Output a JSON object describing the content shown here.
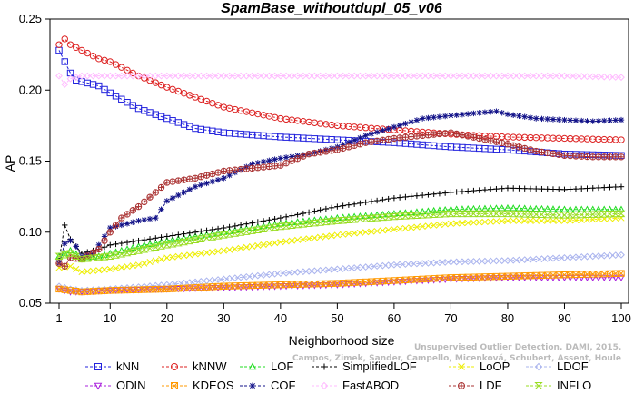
{
  "chart_data": {
    "type": "line",
    "title": "SpamBase_withoutdupl_05_v06",
    "xlabel": "Neighborhood size",
    "ylabel": "AP",
    "xlim": [
      1,
      100
    ],
    "ylim": [
      0.05,
      0.25
    ],
    "xticks": [
      1,
      10,
      20,
      30,
      40,
      50,
      60,
      70,
      80,
      90,
      100
    ],
    "yticks": [
      0.05,
      0.1,
      0.15,
      0.2,
      0.25
    ],
    "ytick_labels": [
      "0.05",
      "0.10",
      "0.15",
      "0.20",
      "0.25"
    ],
    "credit": "Campos, Zimek, Sander, Campello, Micenková, Schubert, Assent, Houle",
    "credit_line1": "Unsupervised Outlier Detection. DAMI, 2015.",
    "legend_placement": "bottom",
    "series": [
      {
        "name": "kNN",
        "color": "#2222dd",
        "marker": "square",
        "points": [
          [
            1,
            0.228
          ],
          [
            2,
            0.22
          ],
          [
            3,
            0.212
          ],
          [
            4,
            0.207
          ],
          [
            5,
            0.206
          ],
          [
            8,
            0.203
          ],
          [
            10,
            0.198
          ],
          [
            15,
            0.187
          ],
          [
            20,
            0.18
          ],
          [
            25,
            0.173
          ],
          [
            30,
            0.17
          ],
          [
            40,
            0.167
          ],
          [
            50,
            0.165
          ],
          [
            60,
            0.163
          ],
          [
            70,
            0.16
          ],
          [
            80,
            0.158
          ],
          [
            90,
            0.155
          ],
          [
            100,
            0.154
          ]
        ]
      },
      {
        "name": "kNNW",
        "color": "#dd2222",
        "marker": "circle",
        "points": [
          [
            1,
            0.232
          ],
          [
            2,
            0.236
          ],
          [
            3,
            0.232
          ],
          [
            5,
            0.228
          ],
          [
            8,
            0.222
          ],
          [
            10,
            0.22
          ],
          [
            15,
            0.21
          ],
          [
            20,
            0.202
          ],
          [
            25,
            0.195
          ],
          [
            30,
            0.188
          ],
          [
            40,
            0.18
          ],
          [
            50,
            0.175
          ],
          [
            60,
            0.172
          ],
          [
            70,
            0.169
          ],
          [
            80,
            0.167
          ],
          [
            90,
            0.166
          ],
          [
            100,
            0.165
          ]
        ]
      },
      {
        "name": "LOF",
        "color": "#22dd22",
        "marker": "triangle",
        "points": [
          [
            1,
            0.083
          ],
          [
            3,
            0.087
          ],
          [
            5,
            0.082
          ],
          [
            8,
            0.083
          ],
          [
            10,
            0.085
          ],
          [
            15,
            0.09
          ],
          [
            20,
            0.094
          ],
          [
            30,
            0.1
          ],
          [
            40,
            0.106
          ],
          [
            50,
            0.11
          ],
          [
            60,
            0.113
          ],
          [
            70,
            0.116
          ],
          [
            80,
            0.117
          ],
          [
            90,
            0.116
          ],
          [
            100,
            0.116
          ]
        ]
      },
      {
        "name": "SimplifiedLOF",
        "color": "#000000",
        "marker": "plus",
        "points": [
          [
            1,
            0.08
          ],
          [
            2,
            0.105
          ],
          [
            3,
            0.095
          ],
          [
            4,
            0.09
          ],
          [
            5,
            0.085
          ],
          [
            8,
            0.088
          ],
          [
            10,
            0.091
          ],
          [
            15,
            0.094
          ],
          [
            20,
            0.097
          ],
          [
            30,
            0.103
          ],
          [
            40,
            0.11
          ],
          [
            50,
            0.118
          ],
          [
            60,
            0.124
          ],
          [
            70,
            0.128
          ],
          [
            80,
            0.131
          ],
          [
            90,
            0.13
          ],
          [
            100,
            0.132
          ]
        ]
      },
      {
        "name": "LoOP",
        "color": "#eeee00",
        "marker": "cross",
        "points": [
          [
            1,
            0.075
          ],
          [
            3,
            0.076
          ],
          [
            5,
            0.072
          ],
          [
            10,
            0.074
          ],
          [
            15,
            0.077
          ],
          [
            20,
            0.082
          ],
          [
            30,
            0.087
          ],
          [
            40,
            0.093
          ],
          [
            50,
            0.098
          ],
          [
            60,
            0.102
          ],
          [
            70,
            0.106
          ],
          [
            80,
            0.108
          ],
          [
            90,
            0.108
          ],
          [
            100,
            0.11
          ]
        ]
      },
      {
        "name": "LDOF",
        "color": "#aab4ee",
        "marker": "diamond",
        "points": [
          [
            1,
            0.062
          ],
          [
            3,
            0.06
          ],
          [
            5,
            0.059
          ],
          [
            10,
            0.06
          ],
          [
            20,
            0.063
          ],
          [
            30,
            0.067
          ],
          [
            40,
            0.071
          ],
          [
            50,
            0.074
          ],
          [
            60,
            0.077
          ],
          [
            70,
            0.079
          ],
          [
            80,
            0.08
          ],
          [
            90,
            0.082
          ],
          [
            100,
            0.084
          ]
        ]
      },
      {
        "name": "ODIN",
        "color": "#aa22dd",
        "marker": "triangle-down",
        "points": [
          [
            1,
            0.06
          ],
          [
            3,
            0.058
          ],
          [
            5,
            0.058
          ],
          [
            10,
            0.059
          ],
          [
            20,
            0.06
          ],
          [
            30,
            0.061
          ],
          [
            40,
            0.062
          ],
          [
            50,
            0.063
          ],
          [
            60,
            0.065
          ],
          [
            70,
            0.067
          ],
          [
            80,
            0.068
          ],
          [
            90,
            0.068
          ],
          [
            100,
            0.068
          ]
        ]
      },
      {
        "name": "KDEOS",
        "color": "#ff9900",
        "marker": "square-x",
        "points": [
          [
            1,
            0.06
          ],
          [
            3,
            0.059
          ],
          [
            5,
            0.058
          ],
          [
            10,
            0.059
          ],
          [
            20,
            0.06
          ],
          [
            30,
            0.062
          ],
          [
            40,
            0.063
          ],
          [
            50,
            0.064
          ],
          [
            60,
            0.066
          ],
          [
            70,
            0.068
          ],
          [
            80,
            0.069
          ],
          [
            90,
            0.07
          ],
          [
            100,
            0.071
          ]
        ]
      },
      {
        "name": "COF",
        "color": "#111188",
        "marker": "asterisk",
        "points": [
          [
            1,
            0.078
          ],
          [
            2,
            0.092
          ],
          [
            3,
            0.094
          ],
          [
            4,
            0.09
          ],
          [
            5,
            0.083
          ],
          [
            7,
            0.085
          ],
          [
            10,
            0.103
          ],
          [
            15,
            0.108
          ],
          [
            18,
            0.11
          ],
          [
            20,
            0.122
          ],
          [
            25,
            0.132
          ],
          [
            30,
            0.138
          ],
          [
            35,
            0.148
          ],
          [
            40,
            0.152
          ],
          [
            45,
            0.155
          ],
          [
            50,
            0.16
          ],
          [
            55,
            0.168
          ],
          [
            60,
            0.174
          ],
          [
            65,
            0.18
          ],
          [
            70,
            0.182
          ],
          [
            75,
            0.184
          ],
          [
            78,
            0.185
          ],
          [
            80,
            0.183
          ],
          [
            85,
            0.18
          ],
          [
            90,
            0.179
          ],
          [
            95,
            0.178
          ],
          [
            100,
            0.179
          ]
        ]
      },
      {
        "name": "FastABOD",
        "color": "#ffbbff",
        "marker": "diamond",
        "points": [
          [
            1,
            0.21
          ],
          [
            2,
            0.204
          ],
          [
            3,
            0.208
          ],
          [
            5,
            0.21
          ],
          [
            10,
            0.21
          ],
          [
            20,
            0.21
          ],
          [
            30,
            0.21
          ],
          [
            40,
            0.21
          ],
          [
            50,
            0.21
          ],
          [
            60,
            0.21
          ],
          [
            70,
            0.21
          ],
          [
            80,
            0.21
          ],
          [
            90,
            0.21
          ],
          [
            100,
            0.209
          ]
        ]
      },
      {
        "name": "LDF",
        "color": "#aa3333",
        "marker": "circle-plus",
        "points": [
          [
            1,
            0.078
          ],
          [
            2,
            0.076
          ],
          [
            3,
            0.082
          ],
          [
            5,
            0.081
          ],
          [
            8,
            0.088
          ],
          [
            10,
            0.1
          ],
          [
            12,
            0.11
          ],
          [
            15,
            0.118
          ],
          [
            18,
            0.128
          ],
          [
            20,
            0.135
          ],
          [
            25,
            0.138
          ],
          [
            30,
            0.143
          ],
          [
            35,
            0.145
          ],
          [
            40,
            0.147
          ],
          [
            45,
            0.155
          ],
          [
            50,
            0.158
          ],
          [
            55,
            0.163
          ],
          [
            60,
            0.166
          ],
          [
            65,
            0.168
          ],
          [
            70,
            0.17
          ],
          [
            75,
            0.166
          ],
          [
            80,
            0.162
          ],
          [
            85,
            0.157
          ],
          [
            90,
            0.154
          ],
          [
            95,
            0.153
          ],
          [
            100,
            0.153
          ]
        ]
      },
      {
        "name": "INFLO",
        "color": "#99dd22",
        "marker": "hourglass",
        "points": [
          [
            1,
            0.083
          ],
          [
            3,
            0.085
          ],
          [
            5,
            0.081
          ],
          [
            10,
            0.083
          ],
          [
            15,
            0.087
          ],
          [
            20,
            0.091
          ],
          [
            30,
            0.098
          ],
          [
            40,
            0.104
          ],
          [
            50,
            0.108
          ],
          [
            60,
            0.111
          ],
          [
            70,
            0.113
          ],
          [
            80,
            0.113
          ],
          [
            90,
            0.112
          ],
          [
            100,
            0.113
          ]
        ]
      }
    ]
  }
}
